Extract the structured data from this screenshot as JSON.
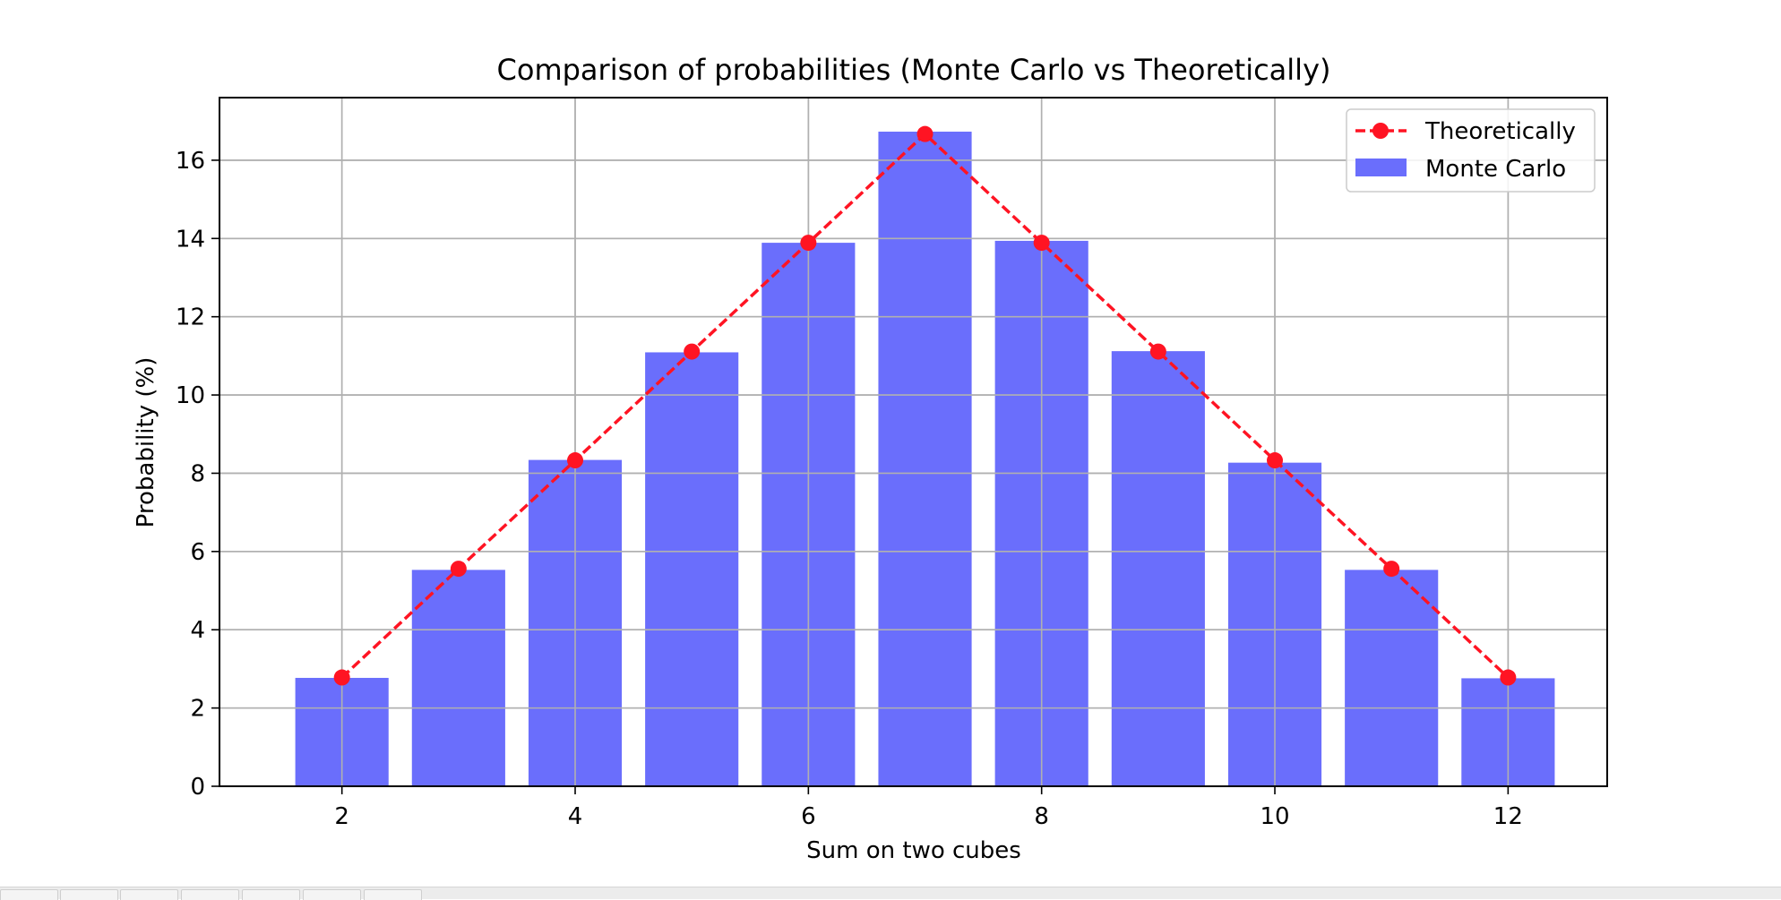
{
  "chart_data": {
    "type": "bar",
    "title": "Comparison of probabilities (Monte Carlo vs Theoretically)",
    "xlabel": "Sum on two cubes",
    "ylabel": "Probability (%)",
    "categories": [
      2,
      3,
      4,
      5,
      6,
      7,
      8,
      9,
      10,
      11,
      12
    ],
    "x_ticks": [
      "2",
      "4",
      "6",
      "8",
      "10",
      "12"
    ],
    "y_ticks": [
      "0",
      "2",
      "4",
      "6",
      "8",
      "10",
      "12",
      "14",
      "16"
    ],
    "xlim": [
      0.95,
      12.85
    ],
    "ylim": [
      0,
      17.6
    ],
    "grid": true,
    "legend_position": "top-right",
    "series": [
      {
        "name": "Monte Carlo",
        "kind": "bar",
        "color": "#6a6efc",
        "values": [
          2.77,
          5.53,
          8.34,
          11.09,
          13.89,
          16.73,
          13.94,
          11.12,
          8.27,
          5.53,
          2.76
        ]
      },
      {
        "name": "Theoretically",
        "kind": "line",
        "style": "dashed",
        "marker": "circle",
        "color": "#ff1423",
        "values": [
          2.78,
          5.56,
          8.33,
          11.11,
          13.89,
          16.67,
          13.89,
          11.11,
          8.33,
          5.56,
          2.78
        ]
      }
    ]
  }
}
